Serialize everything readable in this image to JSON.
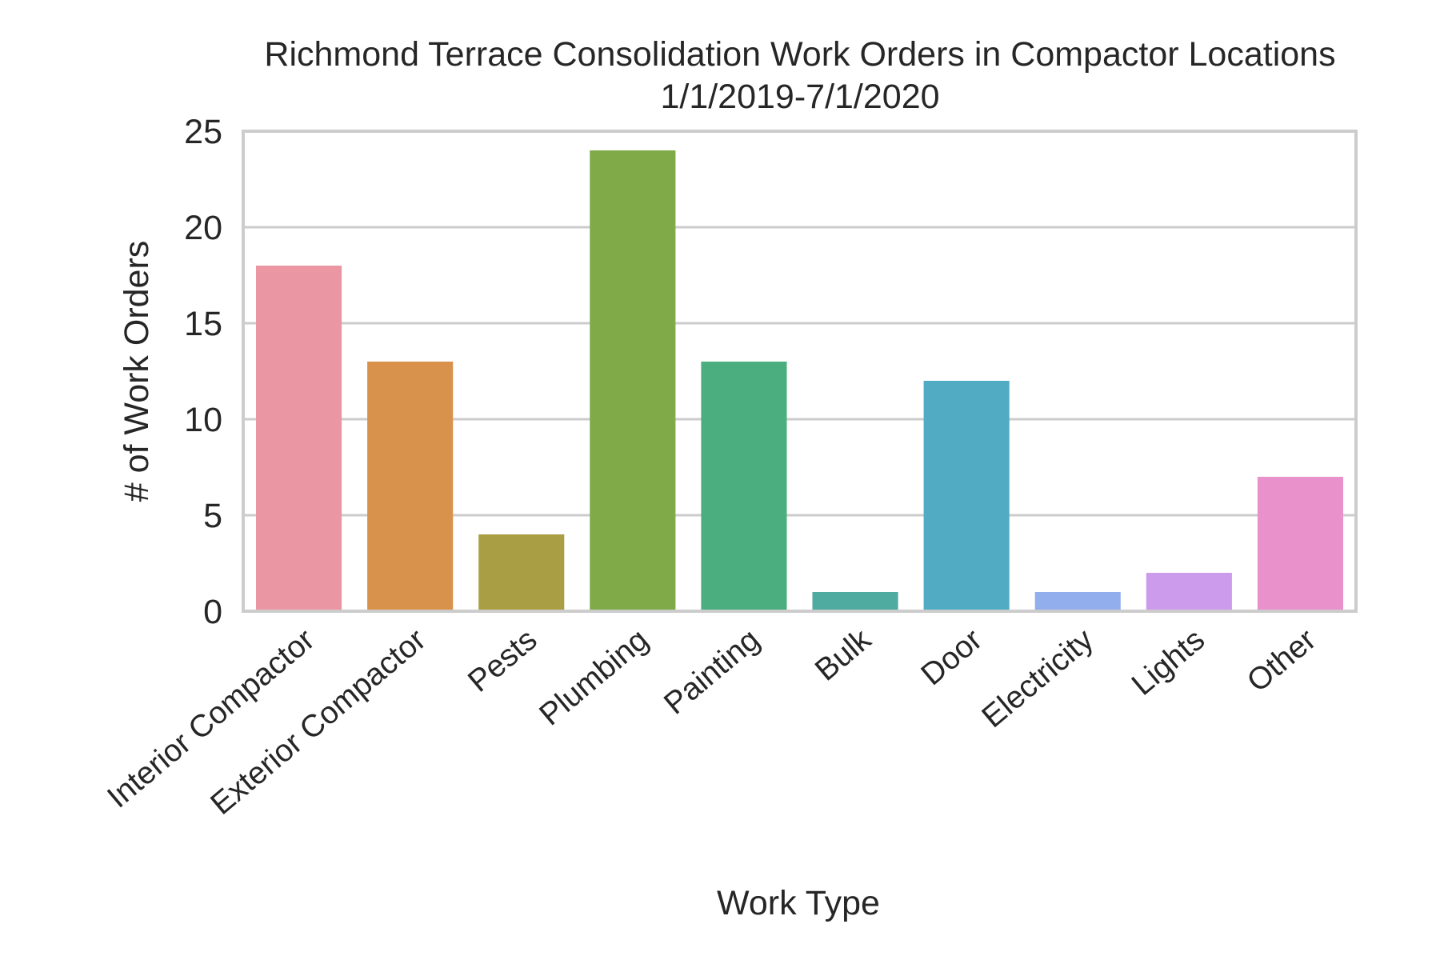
{
  "chart_data": {
    "type": "bar",
    "title": "Richmond Terrace Consolidation Work Orders in Compactor Locations",
    "subtitle": "1/1/2019-7/1/2020",
    "xlabel": "Work Type",
    "ylabel": "# of Work Orders",
    "categories": [
      "Interior Compactor",
      "Exterior Compactor",
      "Pests",
      "Plumbing",
      "Painting",
      "Bulk",
      "Door",
      "Electricity",
      "Lights",
      "Other"
    ],
    "values": [
      18,
      13,
      4,
      24,
      13,
      1,
      12,
      1,
      2,
      7
    ],
    "colors": [
      "#ea96a3",
      "#d8924c",
      "#aa9e44",
      "#80a947",
      "#4bae7f",
      "#4fab9f",
      "#51abc3",
      "#93aeed",
      "#cd9beb",
      "#e991cb"
    ],
    "ylim": [
      0,
      25
    ],
    "yticks": [
      0,
      5,
      10,
      15,
      20,
      25
    ],
    "grid": true,
    "legend": "none"
  }
}
